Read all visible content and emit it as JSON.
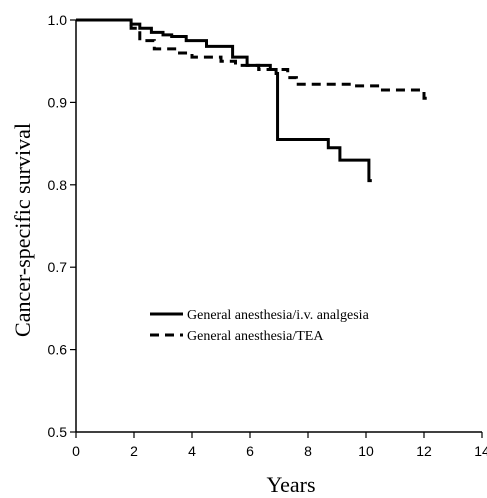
{
  "chart_data": {
    "type": "line",
    "title": "",
    "xlabel": "Years",
    "ylabel": "Cancer-specific survival",
    "xlim": [
      0,
      14
    ],
    "ylim": [
      0.5,
      1.0
    ],
    "x_ticks": [
      0,
      2,
      4,
      6,
      8,
      10,
      12,
      14
    ],
    "y_ticks": [
      0.5,
      0.6,
      0.7,
      0.8,
      0.9,
      1.0
    ],
    "x_tick_labels": [
      "0",
      "2",
      "4",
      "6",
      "8",
      "10",
      "12",
      "14"
    ],
    "y_tick_labels": [
      "0.5",
      "0.6",
      "0.7",
      "0.8",
      "0.9",
      "1.0"
    ],
    "grid": false,
    "legend_position": "center-left",
    "step": true,
    "series": [
      {
        "name": "General anesthesia/i.v. analgesia",
        "line_style": "solid",
        "color": "#000000",
        "x": [
          0,
          1.9,
          2.2,
          2.6,
          3.0,
          3.3,
          3.8,
          4.5,
          5.4,
          5.9,
          6.7,
          6.9,
          6.95,
          7.5,
          8.0,
          8.7,
          9.1,
          9.5,
          10.1,
          10.2
        ],
        "y": [
          1.0,
          0.995,
          0.99,
          0.985,
          0.982,
          0.98,
          0.975,
          0.968,
          0.955,
          0.945,
          0.94,
          0.935,
          0.855,
          0.855,
          0.855,
          0.845,
          0.83,
          0.83,
          0.805,
          0.805
        ]
      },
      {
        "name": "General anesthesia/TEA",
        "line_style": "dashed",
        "color": "#000000",
        "x": [
          0,
          1.9,
          2.2,
          2.7,
          3.5,
          4.0,
          5.0,
          5.5,
          6.3,
          6.9,
          7.3,
          7.6,
          8.5,
          9.5,
          10.5,
          11.5,
          12.0,
          12.1
        ],
        "y": [
          1.0,
          0.99,
          0.975,
          0.965,
          0.96,
          0.955,
          0.95,
          0.945,
          0.94,
          0.94,
          0.93,
          0.922,
          0.922,
          0.92,
          0.915,
          0.915,
          0.905,
          0.905
        ]
      }
    ]
  }
}
